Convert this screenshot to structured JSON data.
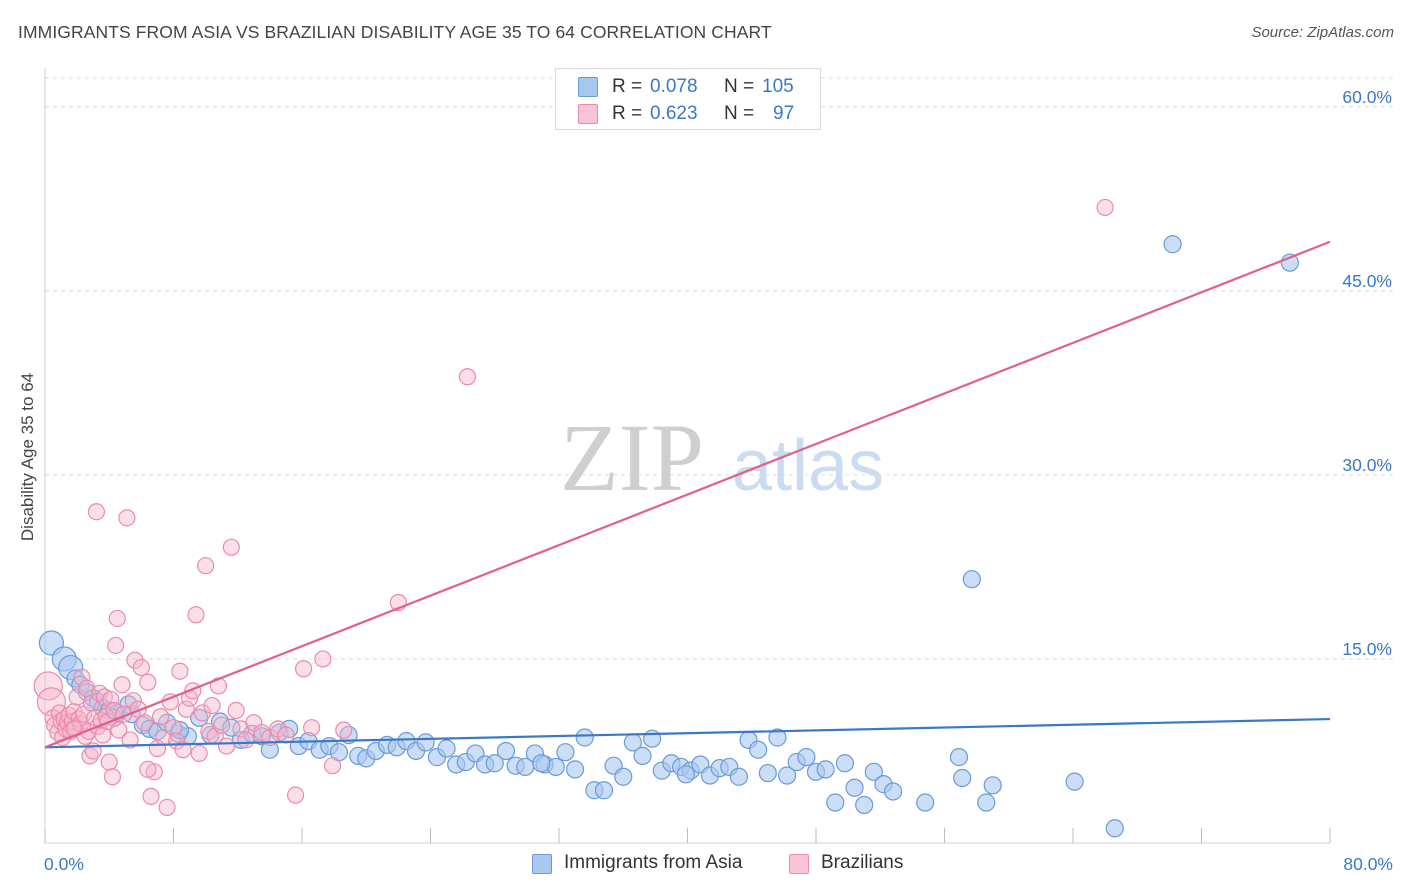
{
  "header": {
    "title": "IMMIGRANTS FROM ASIA VS BRAZILIAN DISABILITY AGE 35 TO 64 CORRELATION CHART",
    "source": "Source: ZipAtlas.com"
  },
  "watermark": {
    "zip": "ZIP",
    "atlas": "atlas"
  },
  "colors": {
    "blue": "#3a78c8",
    "blue_fill": "#a9c8ef",
    "blue_stroke": "#6a9ad8",
    "pink": "#e0608a",
    "pink_fill": "#f6b8cb",
    "pink_stroke": "#ec8aab",
    "grid": "#dcdcdc",
    "axis_text": "#3a78c8"
  },
  "legend": {
    "rows": [
      {
        "r_label": "R =",
        "r_value": "0.078",
        "n_label": "N =",
        "n_value": "105"
      },
      {
        "r_label": "R =",
        "r_value": "0.623",
        "n_label": "N =",
        "n_value": "97"
      }
    ]
  },
  "bottom_legend": {
    "items": [
      "Immigrants from Asia",
      "Brazilians"
    ]
  },
  "chart_data": {
    "type": "scatter",
    "title": "IMMIGRANTS FROM ASIA VS BRAZILIAN DISABILITY AGE 35 TO 64 CORRELATION CHART",
    "xlabel": "",
    "ylabel": "Disability Age 35 to 64",
    "xlim": [
      0,
      80
    ],
    "ylim": [
      0,
      63
    ],
    "x_tick_labels": [
      "0.0%",
      "80.0%"
    ],
    "y_ticks": [
      15,
      30,
      45,
      60
    ],
    "y_tick_labels": [
      "15.0%",
      "30.0%",
      "45.0%",
      "60.0%"
    ],
    "series": [
      {
        "name": "Immigrants from Asia",
        "R": 0.078,
        "N": 105,
        "trend": {
          "x": [
            0,
            80
          ],
          "y": [
            7.8,
            10.1
          ]
        },
        "points": [
          [
            0.4,
            16.3
          ],
          [
            1.2,
            15.0
          ],
          [
            1.6,
            14.3
          ],
          [
            1.9,
            13.4
          ],
          [
            2.2,
            12.9
          ],
          [
            2.6,
            12.3
          ],
          [
            3.0,
            11.8
          ],
          [
            3.3,
            11.5
          ],
          [
            3.6,
            11.0
          ],
          [
            4.0,
            10.8
          ],
          [
            4.5,
            10.6
          ],
          [
            5.2,
            11.3
          ],
          [
            4.3,
            10.2
          ],
          [
            6.1,
            9.6
          ],
          [
            6.5,
            9.3
          ],
          [
            7.0,
            9.1
          ],
          [
            7.6,
            9.8
          ],
          [
            8.3,
            8.9
          ],
          [
            8.9,
            8.7
          ],
          [
            9.6,
            10.2
          ],
          [
            10.3,
            8.8
          ],
          [
            10.9,
            9.9
          ],
          [
            11.6,
            9.4
          ],
          [
            12.2,
            8.4
          ],
          [
            12.9,
            8.9
          ],
          [
            13.5,
            8.7
          ],
          [
            14.0,
            7.6
          ],
          [
            14.6,
            9.0
          ],
          [
            15.2,
            9.3
          ],
          [
            15.8,
            7.9
          ],
          [
            16.4,
            8.3
          ],
          [
            17.1,
            7.6
          ],
          [
            17.7,
            7.9
          ],
          [
            18.3,
            7.4
          ],
          [
            18.9,
            8.8
          ],
          [
            19.5,
            7.1
          ],
          [
            20.0,
            6.9
          ],
          [
            20.6,
            7.5
          ],
          [
            21.3,
            8.0
          ],
          [
            21.9,
            7.8
          ],
          [
            22.5,
            8.3
          ],
          [
            23.1,
            7.5
          ],
          [
            23.7,
            8.2
          ],
          [
            24.4,
            7.0
          ],
          [
            25.0,
            7.7
          ],
          [
            25.6,
            6.4
          ],
          [
            26.2,
            6.6
          ],
          [
            26.8,
            7.3
          ],
          [
            27.4,
            6.4
          ],
          [
            28.0,
            6.5
          ],
          [
            28.7,
            7.5
          ],
          [
            29.3,
            6.3
          ],
          [
            29.9,
            6.2
          ],
          [
            30.5,
            7.3
          ],
          [
            31.1,
            6.4
          ],
          [
            31.8,
            6.2
          ],
          [
            32.4,
            7.4
          ],
          [
            33.0,
            6.0
          ],
          [
            33.6,
            8.6
          ],
          [
            34.2,
            4.3
          ],
          [
            34.8,
            4.3
          ],
          [
            35.4,
            6.3
          ],
          [
            36.0,
            5.4
          ],
          [
            36.6,
            8.2
          ],
          [
            37.2,
            7.1
          ],
          [
            37.8,
            8.5
          ],
          [
            38.4,
            5.9
          ],
          [
            39.0,
            6.5
          ],
          [
            39.6,
            6.2
          ],
          [
            40.2,
            5.9
          ],
          [
            40.8,
            6.4
          ],
          [
            41.4,
            5.5
          ],
          [
            42.0,
            6.1
          ],
          [
            42.6,
            6.2
          ],
          [
            43.2,
            5.4
          ],
          [
            43.8,
            8.4
          ],
          [
            44.4,
            7.6
          ],
          [
            45.0,
            5.7
          ],
          [
            45.6,
            8.6
          ],
          [
            46.2,
            5.5
          ],
          [
            46.8,
            6.6
          ],
          [
            47.4,
            7.0
          ],
          [
            48.0,
            5.8
          ],
          [
            48.6,
            6.0
          ],
          [
            49.2,
            3.3
          ],
          [
            49.8,
            6.5
          ],
          [
            50.4,
            4.5
          ],
          [
            51.0,
            3.1
          ],
          [
            51.6,
            5.8
          ],
          [
            52.2,
            4.8
          ],
          [
            52.8,
            4.2
          ],
          [
            54.8,
            3.3
          ],
          [
            56.9,
            7.0
          ],
          [
            57.1,
            5.3
          ],
          [
            57.7,
            21.5
          ],
          [
            58.6,
            3.3
          ],
          [
            59.0,
            4.7
          ],
          [
            64.1,
            5.0
          ],
          [
            66.6,
            1.2
          ],
          [
            70.2,
            48.8
          ],
          [
            77.5,
            47.3
          ],
          [
            39.9,
            5.6
          ],
          [
            30.9,
            6.5
          ],
          [
            5.4,
            10.5
          ],
          [
            8.4,
            9.2
          ]
        ]
      },
      {
        "name": "Brazilians",
        "R": 0.623,
        "N": 97,
        "trend": {
          "x": [
            0,
            80
          ],
          "y": [
            7.8,
            49.0
          ]
        },
        "points": [
          [
            0.2,
            12.8
          ],
          [
            0.4,
            11.5
          ],
          [
            0.5,
            10.2
          ],
          [
            0.6,
            9.6
          ],
          [
            0.8,
            9.0
          ],
          [
            0.9,
            10.6
          ],
          [
            1.0,
            9.9
          ],
          [
            1.1,
            8.6
          ],
          [
            1.2,
            10.1
          ],
          [
            1.3,
            9.3
          ],
          [
            1.4,
            9.8
          ],
          [
            1.5,
            10.4
          ],
          [
            1.6,
            9.1
          ],
          [
            1.7,
            9.9
          ],
          [
            1.8,
            10.7
          ],
          [
            1.9,
            9.4
          ],
          [
            2.0,
            11.9
          ],
          [
            2.1,
            10.1
          ],
          [
            2.2,
            9.7
          ],
          [
            2.3,
            13.5
          ],
          [
            2.4,
            10.5
          ],
          [
            2.5,
            8.7
          ],
          [
            2.6,
            12.6
          ],
          [
            2.7,
            9.1
          ],
          [
            2.8,
            7.1
          ],
          [
            2.9,
            11.4
          ],
          [
            3.0,
            7.5
          ],
          [
            3.1,
            10.2
          ],
          [
            3.2,
            27.0
          ],
          [
            3.3,
            9.5
          ],
          [
            3.4,
            12.2
          ],
          [
            3.5,
            10.0
          ],
          [
            3.6,
            8.8
          ],
          [
            3.7,
            11.9
          ],
          [
            3.8,
            10.3
          ],
          [
            3.9,
            9.9
          ],
          [
            4.0,
            6.6
          ],
          [
            4.1,
            11.7
          ],
          [
            4.2,
            5.4
          ],
          [
            4.3,
            10.8
          ],
          [
            4.4,
            16.1
          ],
          [
            4.5,
            18.3
          ],
          [
            4.6,
            9.2
          ],
          [
            4.8,
            12.9
          ],
          [
            4.9,
            10.5
          ],
          [
            5.1,
            26.5
          ],
          [
            5.3,
            8.4
          ],
          [
            5.5,
            11.6
          ],
          [
            5.6,
            14.9
          ],
          [
            5.8,
            10.9
          ],
          [
            6.0,
            14.3
          ],
          [
            6.2,
            9.8
          ],
          [
            6.4,
            13.1
          ],
          [
            6.6,
            3.8
          ],
          [
            6.8,
            5.8
          ],
          [
            7.0,
            7.7
          ],
          [
            7.2,
            10.3
          ],
          [
            7.4,
            8.6
          ],
          [
            7.6,
            2.9
          ],
          [
            7.8,
            11.5
          ],
          [
            8.0,
            9.4
          ],
          [
            8.2,
            8.3
          ],
          [
            8.4,
            14.0
          ],
          [
            8.6,
            7.6
          ],
          [
            8.8,
            10.9
          ],
          [
            9.0,
            11.8
          ],
          [
            9.2,
            12.4
          ],
          [
            9.4,
            18.6
          ],
          [
            9.6,
            7.3
          ],
          [
            9.8,
            10.6
          ],
          [
            10.0,
            22.6
          ],
          [
            10.2,
            9.1
          ],
          [
            10.4,
            11.2
          ],
          [
            10.6,
            8.7
          ],
          [
            10.8,
            12.8
          ],
          [
            11.0,
            9.6
          ],
          [
            11.3,
            7.9
          ],
          [
            11.6,
            24.1
          ],
          [
            11.9,
            10.8
          ],
          [
            12.2,
            9.3
          ],
          [
            12.5,
            8.4
          ],
          [
            13.0,
            9.8
          ],
          [
            13.5,
            9.0
          ],
          [
            14.0,
            8.6
          ],
          [
            14.5,
            9.3
          ],
          [
            15.0,
            8.8
          ],
          [
            15.6,
            3.9
          ],
          [
            16.1,
            14.2
          ],
          [
            16.6,
            9.4
          ],
          [
            17.3,
            15.0
          ],
          [
            17.9,
            6.3
          ],
          [
            18.6,
            9.2
          ],
          [
            22.0,
            19.6
          ],
          [
            26.3,
            38.0
          ],
          [
            66.0,
            51.8
          ],
          [
            1.8,
            9.3
          ],
          [
            6.4,
            6.0
          ]
        ]
      }
    ]
  }
}
